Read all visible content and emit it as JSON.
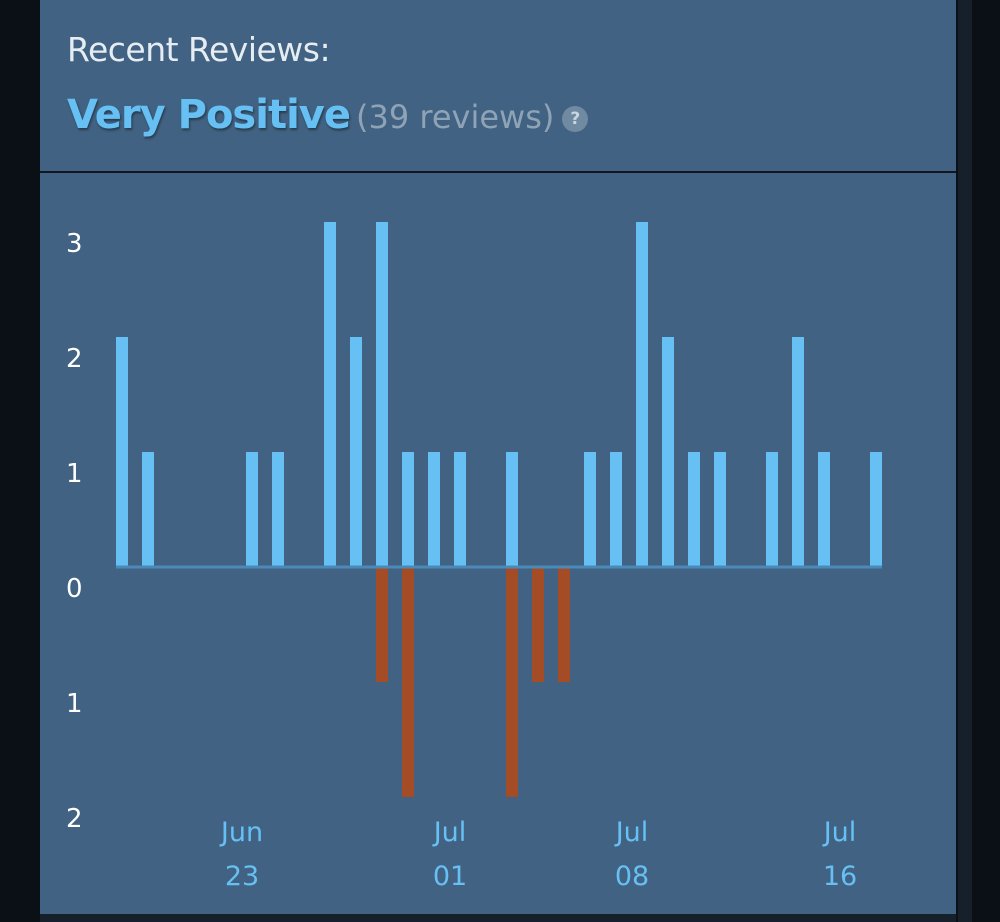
{
  "header": {
    "title": "Recent Reviews:",
    "rating": "Very Positive",
    "count": "(39 reviews)",
    "help_icon": "question-mark-icon",
    "help_label": "?"
  },
  "colors": {
    "positive": "#66c0f4",
    "negative": "#a34c25",
    "background": "#416282"
  },
  "chart_data": {
    "type": "bar",
    "dates": [
      "Jun 18",
      "Jun 19",
      "Jun 20",
      "Jun 21",
      "Jun 22",
      "Jun 23",
      "Jun 24",
      "Jun 25",
      "Jun 26",
      "Jun 27",
      "Jun 28",
      "Jun 29",
      "Jun 30",
      "Jul 01",
      "Jul 02",
      "Jul 03",
      "Jul 04",
      "Jul 05",
      "Jul 06",
      "Jul 07",
      "Jul 08",
      "Jul 09",
      "Jul 10",
      "Jul 11",
      "Jul 12",
      "Jul 13",
      "Jul 14",
      "Jul 15",
      "Jul 16",
      "Jul 17"
    ],
    "series": [
      {
        "name": "",
        "kind": "positive",
        "values": [
          2,
          1,
          0,
          0,
          0,
          1,
          1,
          0,
          3,
          2,
          3,
          1,
          1,
          1,
          0,
          1,
          0,
          0,
          1,
          1,
          3,
          2,
          1,
          1,
          0,
          1,
          2,
          1,
          0,
          1
        ]
      },
      {
        "name": "",
        "kind": "negative",
        "values": [
          0,
          0,
          0,
          0,
          0,
          0,
          0,
          0,
          0,
          0,
          1,
          2,
          0,
          0,
          0,
          2,
          1,
          1,
          0,
          0,
          0,
          0,
          0,
          0,
          0,
          0,
          0,
          0,
          0,
          0
        ]
      }
    ],
    "y_ticks": [
      {
        "value": 3,
        "label": "3"
      },
      {
        "value": 2,
        "label": "2"
      },
      {
        "value": 1,
        "label": "1"
      },
      {
        "value": 0,
        "label": "0"
      },
      {
        "value": -1,
        "label": "1"
      },
      {
        "value": -2,
        "label": "2"
      }
    ],
    "x_ticks": [
      {
        "date": "Jun 23",
        "month": "Jun",
        "day": "23"
      },
      {
        "date": "Jul 01",
        "month": "Jul",
        "day": "01"
      },
      {
        "date": "Jul 08",
        "month": "Jul",
        "day": "08"
      },
      {
        "date": "Jul 16",
        "month": "Jul",
        "day": "16"
      }
    ],
    "ylim": [
      -2,
      3
    ],
    "grid": false
  }
}
